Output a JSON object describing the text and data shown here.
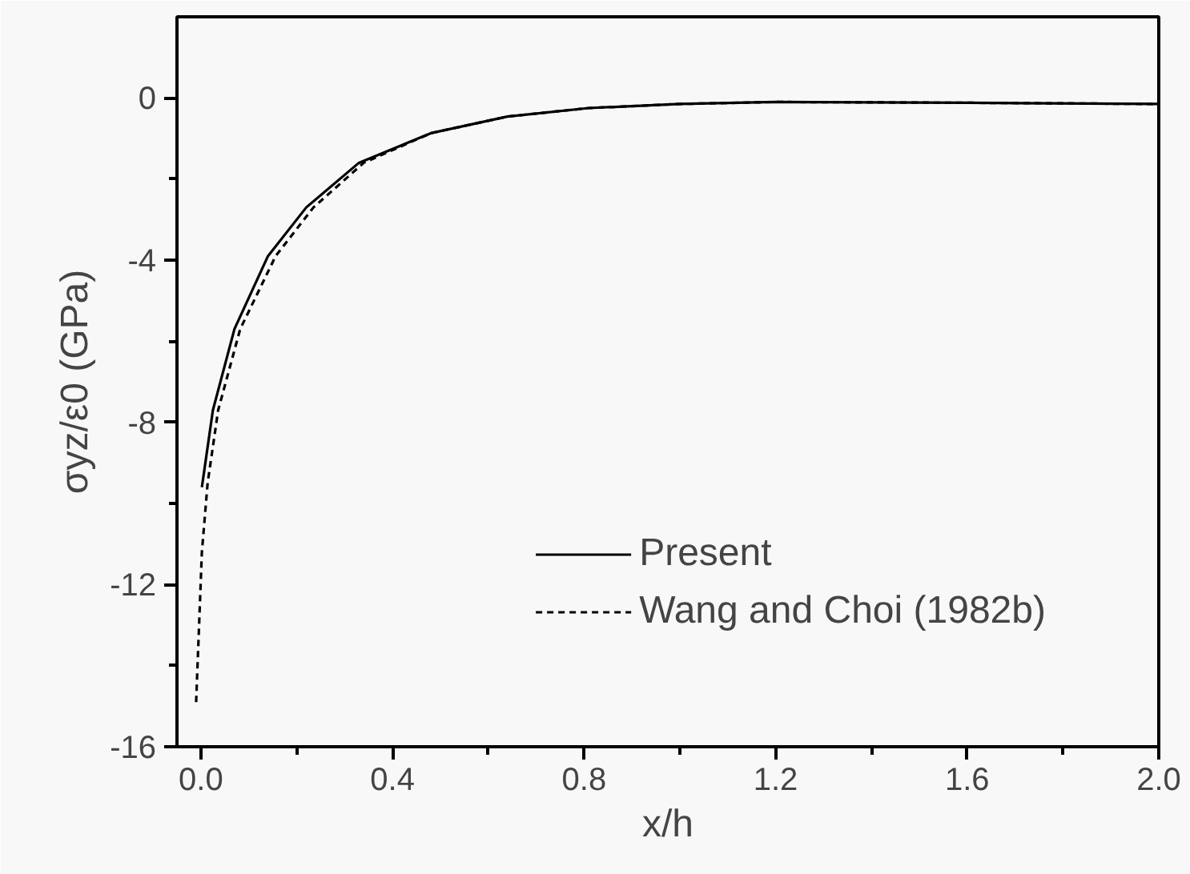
{
  "chart_data": {
    "type": "line",
    "xlabel": "x/h",
    "ylabel": "σyz/ε0 (GPa)",
    "xlim": [
      -0.05,
      2.0
    ],
    "ylim": [
      -16,
      2
    ],
    "xticks": [
      {
        "value": 0,
        "label": "0.0"
      },
      0.4,
      0.8,
      1.2,
      1.6,
      {
        "value": 2,
        "label": "2.0"
      }
    ],
    "yticks": [
      -16,
      -12,
      -8,
      -4,
      0
    ],
    "legend": "bottom right",
    "grid": false,
    "series": [
      {
        "name": "Present",
        "color": "#000000",
        "line_style": "solid",
        "x": [
          0.002,
          0.025,
          0.07,
          0.14,
          0.22,
          0.33,
          0.48,
          0.64,
          0.81,
          1.0,
          1.2,
          1.6,
          2.0
        ],
        "values": [
          -9.6,
          -7.7,
          -5.7,
          -3.9,
          -2.7,
          -1.6,
          -0.87,
          -0.46,
          -0.25,
          -0.15,
          -0.1,
          -0.12,
          -0.15
        ]
      },
      {
        "name": "Wang and Choi (1982b)",
        "color": "#000000",
        "line_style": "dashed",
        "x": [
          -0.01,
          0.002,
          0.014,
          0.036,
          0.082,
          0.156,
          0.235,
          0.34,
          0.48,
          0.64,
          0.81,
          1.0,
          1.2,
          1.6,
          2.0
        ],
        "values": [
          -14.9,
          -11.2,
          -9.5,
          -7.7,
          -5.7,
          -3.9,
          -2.7,
          -1.6,
          -0.87,
          -0.46,
          -0.25,
          -0.15,
          -0.1,
          -0.12,
          -0.15
        ]
      }
    ]
  }
}
